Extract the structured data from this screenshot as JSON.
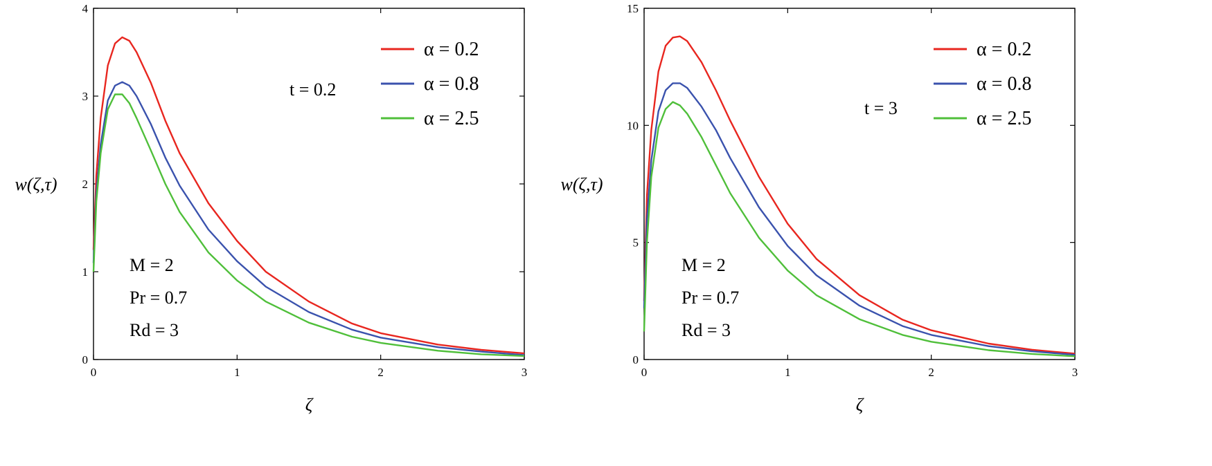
{
  "chart_data": [
    {
      "type": "line",
      "xlabel": "ζ",
      "ylabel": "w(ζ,τ)",
      "xlim": [
        0,
        3
      ],
      "ylim": [
        0,
        4
      ],
      "xticks": [
        0,
        1,
        2,
        3
      ],
      "yticks": [
        0,
        1,
        2,
        3,
        4
      ],
      "grid": false,
      "legend_position": "top-right",
      "annotation_top": "t = 0.2",
      "annotation_params": [
        "M = 2",
        "Pr = 0.7",
        "Rd = 3"
      ],
      "series": [
        {
          "name": "α = 0.2",
          "color": "#e8261f",
          "x": [
            0,
            0.02,
            0.05,
            0.1,
            0.15,
            0.2,
            0.25,
            0.3,
            0.4,
            0.5,
            0.6,
            0.8,
            1.0,
            1.2,
            1.5,
            1.8,
            2.0,
            2.4,
            2.7,
            3.0
          ],
          "y": [
            1.25,
            2.1,
            2.75,
            3.35,
            3.6,
            3.67,
            3.63,
            3.5,
            3.15,
            2.72,
            2.35,
            1.78,
            1.35,
            1.0,
            0.66,
            0.41,
            0.3,
            0.17,
            0.11,
            0.07
          ]
        },
        {
          "name": "α = 0.8",
          "color": "#3a52ad",
          "x": [
            0,
            0.02,
            0.05,
            0.1,
            0.15,
            0.2,
            0.25,
            0.3,
            0.4,
            0.5,
            0.6,
            0.8,
            1.0,
            1.2,
            1.5,
            1.8,
            2.0,
            2.4,
            2.7,
            3.0
          ],
          "y": [
            1.1,
            1.9,
            2.45,
            2.95,
            3.12,
            3.16,
            3.12,
            3.0,
            2.68,
            2.3,
            1.98,
            1.48,
            1.12,
            0.83,
            0.54,
            0.34,
            0.25,
            0.14,
            0.09,
            0.05
          ]
        },
        {
          "name": "α = 2.5",
          "color": "#4fbf3a",
          "x": [
            0,
            0.02,
            0.05,
            0.1,
            0.15,
            0.2,
            0.25,
            0.3,
            0.4,
            0.5,
            0.6,
            0.8,
            1.0,
            1.2,
            1.5,
            1.8,
            2.0,
            2.4,
            2.7,
            3.0
          ],
          "y": [
            1.0,
            1.8,
            2.35,
            2.85,
            3.02,
            3.02,
            2.92,
            2.75,
            2.38,
            2.0,
            1.68,
            1.22,
            0.9,
            0.66,
            0.42,
            0.26,
            0.19,
            0.1,
            0.06,
            0.04
          ]
        }
      ]
    },
    {
      "type": "line",
      "xlabel": "ζ",
      "ylabel": "w(ζ,τ)",
      "xlim": [
        0,
        3
      ],
      "ylim": [
        0,
        15
      ],
      "xticks": [
        0,
        1,
        2,
        3
      ],
      "yticks": [
        0,
        5,
        10,
        15
      ],
      "grid": false,
      "legend_position": "top-right",
      "annotation_top": "t = 3",
      "annotation_params": [
        "M = 2",
        "Pr = 0.7",
        "Rd = 3"
      ],
      "series": [
        {
          "name": "α = 0.2",
          "color": "#e8261f",
          "x": [
            0,
            0.02,
            0.05,
            0.1,
            0.15,
            0.2,
            0.25,
            0.3,
            0.4,
            0.5,
            0.6,
            0.8,
            1.0,
            1.2,
            1.5,
            1.8,
            2.0,
            2.4,
            2.7,
            3.0
          ],
          "y": [
            2.5,
            7.0,
            9.8,
            12.3,
            13.4,
            13.75,
            13.8,
            13.6,
            12.7,
            11.5,
            10.2,
            7.8,
            5.8,
            4.3,
            2.75,
            1.7,
            1.25,
            0.68,
            0.42,
            0.25
          ]
        },
        {
          "name": "α = 0.8",
          "color": "#3a52ad",
          "x": [
            0,
            0.02,
            0.05,
            0.1,
            0.15,
            0.2,
            0.25,
            0.3,
            0.4,
            0.5,
            0.6,
            0.8,
            1.0,
            1.2,
            1.5,
            1.8,
            2.0,
            2.4,
            2.7,
            3.0
          ],
          "y": [
            2.2,
            6.0,
            8.5,
            10.6,
            11.5,
            11.8,
            11.8,
            11.6,
            10.8,
            9.8,
            8.6,
            6.5,
            4.85,
            3.6,
            2.3,
            1.43,
            1.05,
            0.57,
            0.35,
            0.2
          ]
        },
        {
          "name": "α = 2.5",
          "color": "#4fbf3a",
          "x": [
            0,
            0.02,
            0.05,
            0.1,
            0.15,
            0.2,
            0.25,
            0.3,
            0.4,
            0.5,
            0.6,
            0.8,
            1.0,
            1.2,
            1.5,
            1.8,
            2.0,
            2.4,
            2.7,
            3.0
          ],
          "y": [
            1.2,
            5.0,
            7.8,
            9.9,
            10.7,
            11.0,
            10.85,
            10.5,
            9.5,
            8.3,
            7.1,
            5.2,
            3.8,
            2.75,
            1.72,
            1.05,
            0.76,
            0.4,
            0.24,
            0.14
          ]
        }
      ]
    }
  ]
}
